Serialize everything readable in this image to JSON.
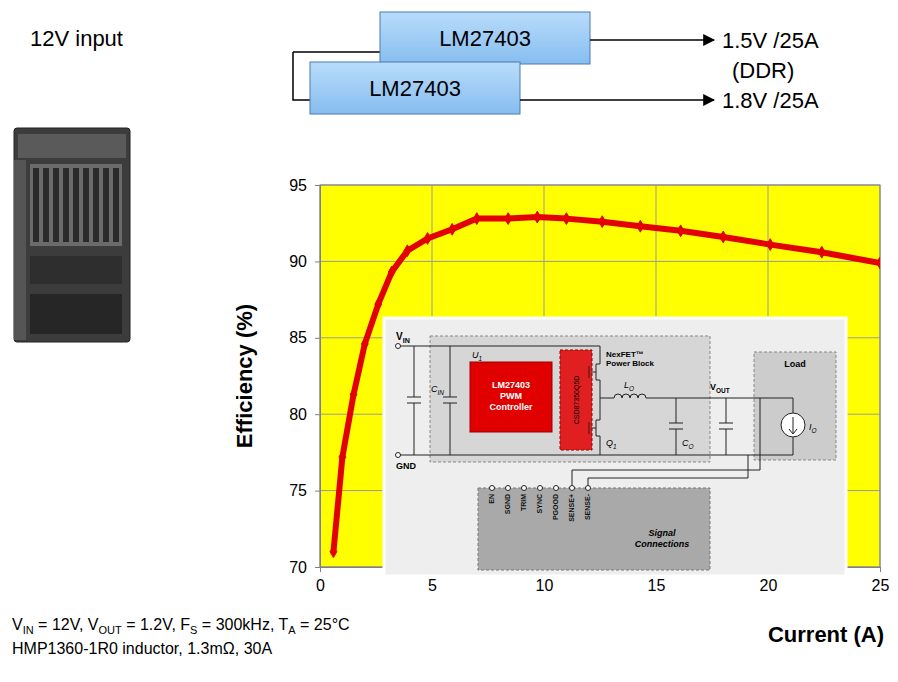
{
  "chart_data": {
    "type": "line",
    "x_label": "Current (A)",
    "y_label": "Efficiency (%)",
    "x": [
      0.6,
      1.0,
      1.5,
      2.0,
      2.6,
      3.2,
      3.9,
      4.8,
      5.9,
      7.0,
      8.4,
      9.7,
      11.0,
      12.6,
      14.3,
      16.1,
      18.0,
      20.1,
      22.4,
      25.0
    ],
    "values": [
      71.0,
      77.2,
      81.3,
      84.6,
      87.2,
      89.3,
      90.7,
      91.5,
      92.1,
      92.8,
      92.8,
      92.9,
      92.8,
      92.6,
      92.3,
      92.0,
      91.6,
      91.1,
      90.6,
      89.9
    ],
    "color": "#e30000",
    "marker": "diamond",
    "line_style": "solid",
    "xlim": [
      0,
      25
    ],
    "ylim": [
      70,
      95
    ],
    "xticks": [
      0,
      5,
      10,
      15,
      20,
      25
    ],
    "yticks": [
      70,
      75,
      80,
      85,
      90,
      95
    ],
    "grid": true
  },
  "diagram": {
    "input": "12V input",
    "converters": [
      "LM27403",
      "LM27403"
    ],
    "outputs": [
      [
        "1.5V /25A",
        "(DDR)"
      ],
      [
        "1.8V /25A"
      ]
    ]
  },
  "schematic": {
    "vin": {
      "text": "V",
      "sub": "IN"
    },
    "gnd": {
      "text": "GND"
    },
    "u1": {
      "text": "U",
      "sub": "1"
    },
    "controller": [
      "LM27403",
      "PWM",
      "Controller"
    ],
    "power_block_part": "CSD87350Q5D",
    "power_block": [
      "NexFET™",
      "Power Block"
    ],
    "q1": {
      "text": "Q",
      "sub": "1"
    },
    "inductor": {
      "text": "L",
      "sub": "O"
    },
    "cin": {
      "text": "C",
      "sub": "IN"
    },
    "co": {
      "text": "C",
      "sub": "O"
    },
    "vout": {
      "text": "V",
      "sub": "OUT"
    },
    "load": "Load",
    "io": {
      "text": "I",
      "sub": "O"
    },
    "pins": [
      "EN",
      "SGND",
      "TRIM",
      "SYNC",
      "PGOOD",
      "SENSE+",
      "SENSE-"
    ],
    "signal": [
      "Signal",
      "Connections"
    ]
  },
  "caption": {
    "lines": [
      [
        {
          "text": "V"
        },
        {
          "sub": "IN"
        },
        {
          "text": " = 12V, V"
        },
        {
          "sub": "OUT"
        },
        {
          "text": " = 1.2V, F"
        },
        {
          "sub": "S"
        },
        {
          "text": " = 300kHz, T"
        },
        {
          "sub": "A"
        },
        {
          "text": " = 25°C"
        }
      ],
      [
        {
          "text": "HMP1360-1R0 inductor, 1.3mΩ, 30A"
        }
      ]
    ]
  }
}
